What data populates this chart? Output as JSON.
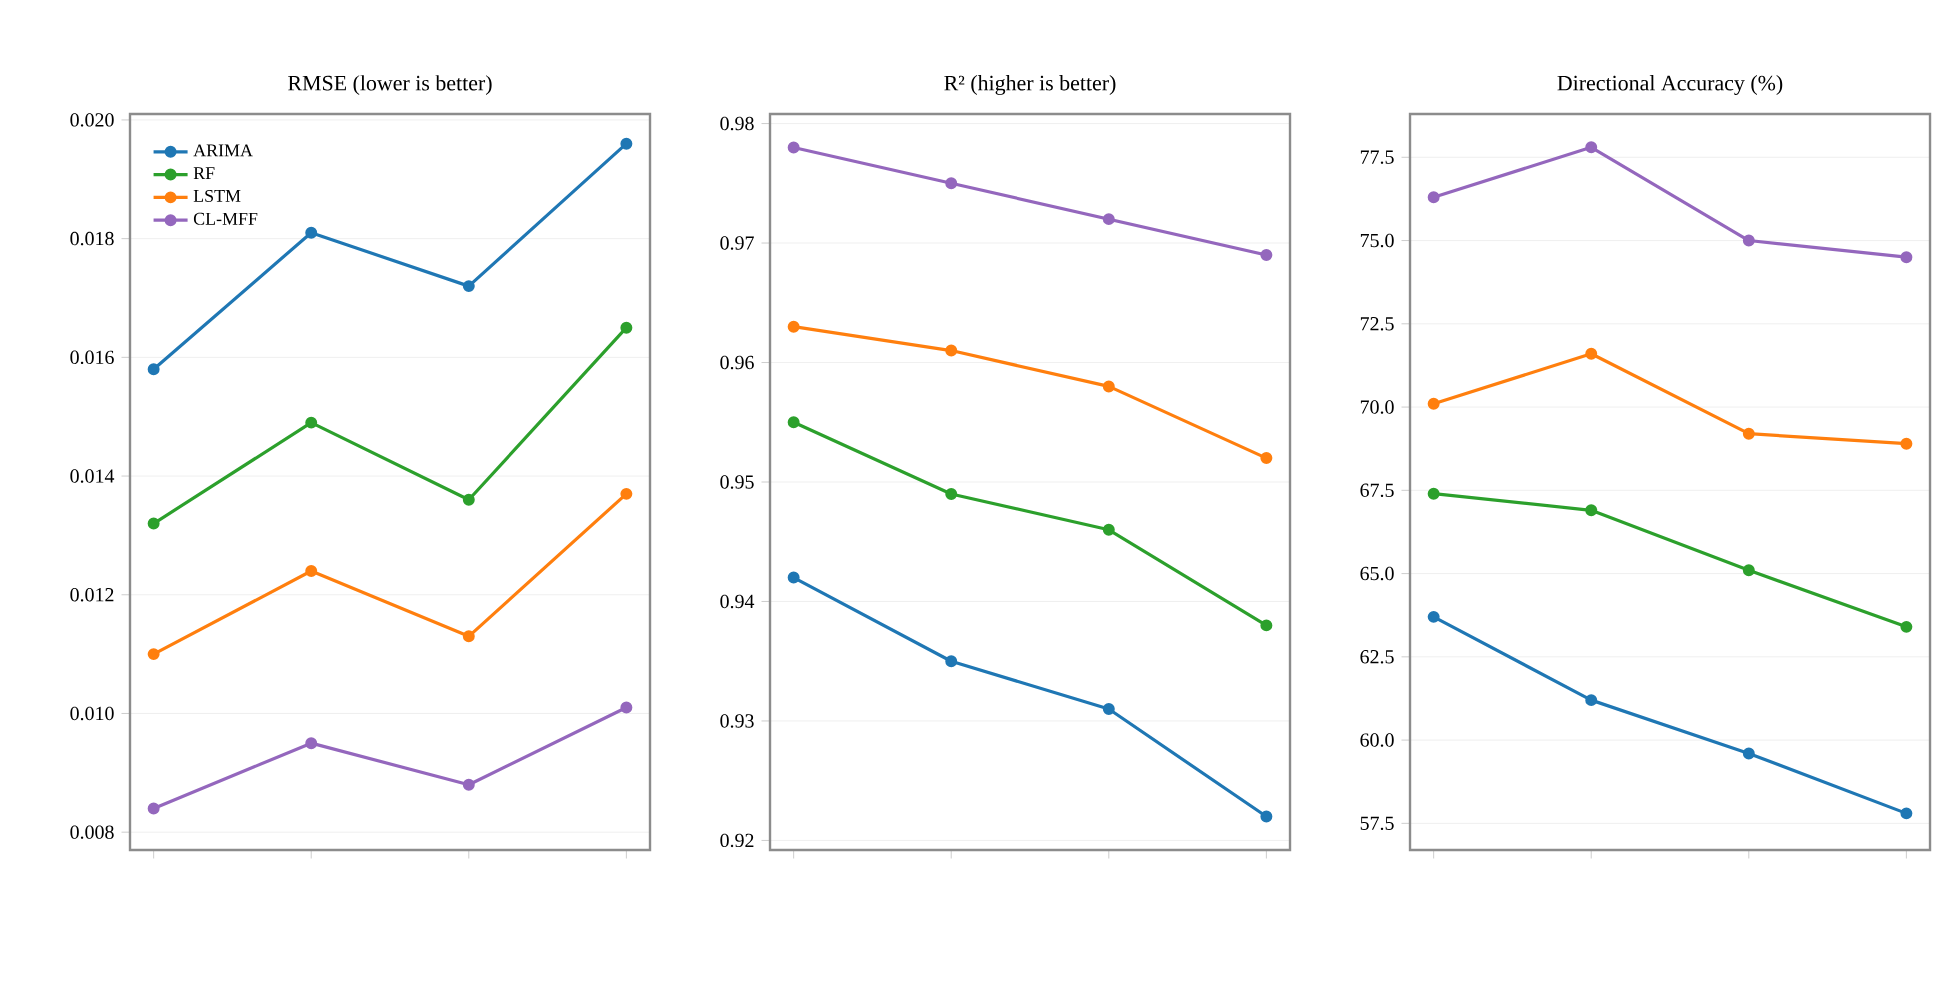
{
  "chart_data": [
    {
      "type": "line",
      "title": "RMSE (lower is better)",
      "categories": [
        null,
        null,
        null,
        null
      ],
      "ylim": [
        0.0077,
        0.0201
      ],
      "yticks": [
        {
          "value": 0.008,
          "label": "0.008"
        },
        {
          "value": 0.01,
          "label": "0.010"
        },
        {
          "value": 0.012,
          "label": "0.012"
        },
        {
          "value": 0.014,
          "label": "0.014"
        },
        {
          "value": 0.016,
          "label": "0.016"
        },
        {
          "value": 0.018,
          "label": "0.018"
        },
        {
          "value": 0.02,
          "label": "0.020"
        }
      ],
      "grid": "y",
      "legend": "top left",
      "marker": "circle",
      "series": [
        {
          "name": "ARIMA",
          "color": "#1f77b4",
          "values": [
            0.0158,
            0.0181,
            0.0172,
            0.0196
          ]
        },
        {
          "name": "RF",
          "color": "#2ca02c",
          "values": [
            0.0132,
            0.0149,
            0.0136,
            0.0165
          ]
        },
        {
          "name": "LSTM",
          "color": "#ff7f0e",
          "values": [
            0.011,
            0.0124,
            0.0113,
            0.0137
          ]
        },
        {
          "name": "CL-MFF",
          "color": "#9467bd",
          "values": [
            0.0084,
            0.0095,
            0.0088,
            0.0101
          ]
        }
      ]
    },
    {
      "type": "line",
      "title": "R² (higher is better)",
      "categories": [
        null,
        null,
        null,
        null
      ],
      "ylim": [
        0.9192,
        0.9808
      ],
      "yticks": [
        {
          "value": 0.92,
          "label": "0.92"
        },
        {
          "value": 0.93,
          "label": "0.93"
        },
        {
          "value": 0.94,
          "label": "0.94"
        },
        {
          "value": 0.95,
          "label": "0.95"
        },
        {
          "value": 0.96,
          "label": "0.96"
        },
        {
          "value": 0.97,
          "label": "0.97"
        },
        {
          "value": 0.98,
          "label": "0.98"
        }
      ],
      "grid": "y",
      "marker": "circle",
      "series": [
        {
          "color": "#1f77b4",
          "values": [
            0.942,
            0.935,
            0.931,
            0.922
          ]
        },
        {
          "color": "#2ca02c",
          "values": [
            0.955,
            0.949,
            0.946,
            0.938
          ]
        },
        {
          "color": "#ff7f0e",
          "values": [
            0.963,
            0.961,
            0.958,
            0.952
          ]
        },
        {
          "color": "#9467bd",
          "values": [
            0.978,
            0.975,
            0.972,
            0.969
          ]
        }
      ]
    },
    {
      "type": "line",
      "title": "Directional Accuracy (%)",
      "categories": [
        null,
        null,
        null,
        null
      ],
      "ylim": [
        56.7,
        78.8
      ],
      "yticks": [
        {
          "value": 57.5,
          "label": "57.5"
        },
        {
          "value": 60,
          "label": "60.0"
        },
        {
          "value": 62.5,
          "label": "62.5"
        },
        {
          "value": 65,
          "label": "65.0"
        },
        {
          "value": 67.5,
          "label": "67.5"
        },
        {
          "value": 70,
          "label": "70.0"
        },
        {
          "value": 72.5,
          "label": "72.5"
        },
        {
          "value": 75,
          "label": "75.0"
        },
        {
          "value": 77.5,
          "label": "77.5"
        }
      ],
      "grid": "y",
      "marker": "circle",
      "series": [
        {
          "color": "#1f77b4",
          "values": [
            63.7,
            61.2,
            59.6,
            57.8
          ]
        },
        {
          "color": "#2ca02c",
          "values": [
            67.4,
            66.9,
            65.1,
            63.4
          ]
        },
        {
          "color": "#ff7f0e",
          "values": [
            70.1,
            71.6,
            69.2,
            68.9
          ]
        },
        {
          "color": "#9467bd",
          "values": [
            76.3,
            77.8,
            75.0,
            74.5
          ]
        }
      ]
    }
  ]
}
